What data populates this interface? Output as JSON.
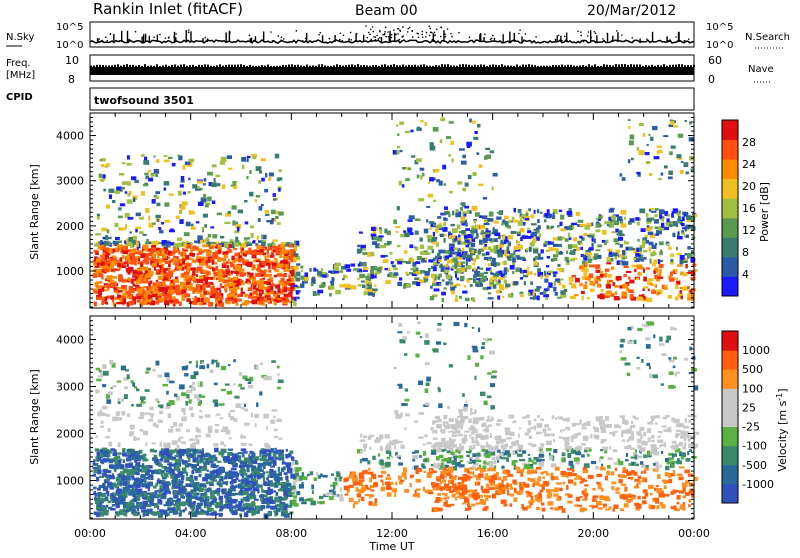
{
  "header": {
    "site": "Rankin Inlet (fitACF)",
    "beam": "Beam 00",
    "date": "20/Mar/2012"
  },
  "top_panel": {
    "left_label": "N.Sky",
    "right_label": "N.Search",
    "left_ticks": [
      "10^5",
      "10^0"
    ],
    "right_ticks": [
      "10^5",
      "10^0"
    ]
  },
  "freq_panel": {
    "left_label_line1": "Freq.",
    "left_label_line2": "[MHz]",
    "left_ticks": [
      "10",
      "8"
    ],
    "right_label": "Nave",
    "right_ticks": [
      "60",
      "0"
    ]
  },
  "cpid_panel": {
    "label": "CPID",
    "value": "twofsound 3501"
  },
  "colors": {
    "power_scale": [
      "#1a1aff",
      "#2a5aa8",
      "#3a7a70",
      "#5a9a50",
      "#a0c040",
      "#f0c020",
      "#ff8c00",
      "#ff5010",
      "#e01010"
    ],
    "velocity_scale": [
      "#3050c0",
      "#2a6a9a",
      "#3a8a6a",
      "#5ab040",
      "#c8c8c8",
      "#c8c8c8",
      "#ff9020",
      "#ff6010",
      "#e01010"
    ]
  },
  "chart_data": [
    {
      "type": "heatmap",
      "title": "",
      "xlabel": "Time UT",
      "ylabel": "Slant Range [km]",
      "x_ticks": [
        "00:00",
        "04:00",
        "08:00",
        "12:00",
        "16:00",
        "20:00",
        "00:00"
      ],
      "x_range_hours": [
        0,
        24
      ],
      "ylim": [
        180,
        4500
      ],
      "y_ticks": [
        1000,
        2000,
        3000,
        4000
      ],
      "colorbar": {
        "label": "Power [dB]",
        "ticks": [
          4,
          8,
          12,
          16,
          20,
          24,
          28
        ],
        "range": [
          0,
          30
        ]
      }
    },
    {
      "type": "heatmap",
      "title": "",
      "xlabel": "Time UT",
      "ylabel": "Slant Range [km]",
      "x_ticks": [
        "00:00",
        "04:00",
        "08:00",
        "12:00",
        "16:00",
        "20:00",
        "00:00"
      ],
      "x_range_hours": [
        0,
        24
      ],
      "ylim": [
        180,
        4500
      ],
      "y_ticks": [
        1000,
        2000,
        3000,
        4000
      ],
      "colorbar": {
        "label": "Velocity [m s^-1]",
        "ticks": [
          1000,
          500,
          100,
          25,
          -25,
          -100,
          -500,
          -1000
        ]
      }
    }
  ]
}
